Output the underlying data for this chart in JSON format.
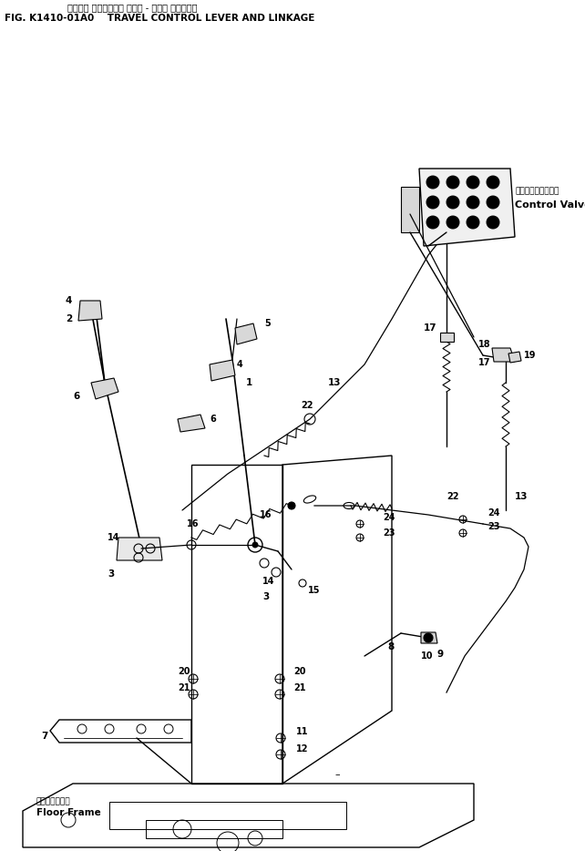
{
  "title_japanese": "ソウコウ コントロール レバー - オヨビ リンケージ",
  "title_fig": "FIG. K1410-01A0    TRAVEL CONTROL LEVER AND LINKAGE",
  "background_color": "#ffffff",
  "line_color": "#000000",
  "callout_control_valve_jp": "コントロールバルブ",
  "callout_control_valve_en": "Control Valve",
  "callout_floor_frame_jp": "フロアフレーム",
  "callout_floor_frame_en": "Floor Frame"
}
